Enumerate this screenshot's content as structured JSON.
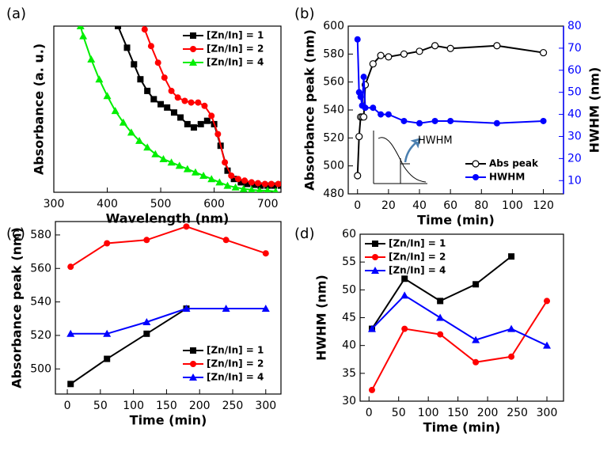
{
  "chart_data": [
    {
      "type": "line",
      "label": "(a)",
      "xlabel": "Wavelength (nm)",
      "ylabel": "Absorbance (a. u.)",
      "xlim": [
        300,
        725
      ],
      "xticks": [
        300,
        400,
        500,
        600,
        700
      ],
      "ylim": [
        0,
        1
      ],
      "legend": "top-right",
      "series": [
        {
          "name": "[Zn/In] = 1",
          "color": "#000000",
          "marker": "square",
          "x": [
            420,
            437,
            450,
            462,
            475,
            487,
            500,
            512,
            525,
            537,
            550,
            562,
            575,
            587,
            600,
            612,
            625,
            637,
            650,
            662,
            675,
            687,
            700,
            712,
            725
          ],
          "values": [
            1.0,
            0.87,
            0.77,
            0.68,
            0.61,
            0.56,
            0.53,
            0.51,
            0.48,
            0.45,
            0.41,
            0.39,
            0.41,
            0.43,
            0.41,
            0.28,
            0.13,
            0.08,
            0.06,
            0.05,
            0.045,
            0.04,
            0.04,
            0.04,
            0.04
          ]
        },
        {
          "name": "[Zn/In] = 2",
          "color": "#ff0000",
          "marker": "circle",
          "x": [
            465,
            470,
            482,
            495,
            507,
            520,
            532,
            545,
            557,
            570,
            582,
            595,
            607,
            620,
            632,
            645,
            657,
            670,
            682,
            695,
            707,
            720
          ],
          "values": [
            1.02,
            0.98,
            0.88,
            0.78,
            0.69,
            0.61,
            0.57,
            0.55,
            0.54,
            0.54,
            0.52,
            0.46,
            0.35,
            0.18,
            0.1,
            0.08,
            0.07,
            0.06,
            0.055,
            0.05,
            0.05,
            0.05
          ]
        },
        {
          "name": "[Zn/In] = 4",
          "color": "#00ee00",
          "marker": "triangle",
          "x": [
            350,
            355,
            370,
            385,
            400,
            415,
            430,
            445,
            460,
            475,
            490,
            505,
            520,
            535,
            550,
            565,
            580,
            595,
            610,
            625,
            640,
            655,
            670,
            685,
            700,
            715
          ],
          "values": [
            1.0,
            0.94,
            0.8,
            0.68,
            0.58,
            0.49,
            0.42,
            0.36,
            0.31,
            0.27,
            0.23,
            0.2,
            0.18,
            0.16,
            0.14,
            0.12,
            0.1,
            0.08,
            0.06,
            0.04,
            0.03,
            0.02,
            0.015,
            0.01,
            0.01,
            0.005
          ]
        }
      ]
    },
    {
      "type": "line",
      "label": "(b)",
      "xlabel": "Time (min)",
      "ylabel": "Absorbance peak (nm)",
      "y2label": "HWHM (nm)",
      "y2color": "#0000ff",
      "xlim": [
        -6,
        133
      ],
      "xticks": [
        0,
        20,
        40,
        60,
        80,
        100,
        120
      ],
      "ylim": [
        480,
        600
      ],
      "yticks": [
        480,
        500,
        520,
        540,
        560,
        580,
        600
      ],
      "y2lim": [
        4,
        80
      ],
      "y2ticks": [
        10,
        20,
        30,
        40,
        50,
        60,
        70,
        80
      ],
      "legend": "bottom-right",
      "annotation": "HWHM",
      "series": [
        {
          "name": "Abs peak",
          "color": "#000000",
          "marker": "open-circle",
          "x": [
            0,
            1,
            2,
            3,
            4,
            5,
            10,
            15,
            20,
            30,
            40,
            50,
            60,
            90,
            120
          ],
          "values": [
            493,
            521,
            535,
            535,
            535,
            558,
            573,
            579,
            578,
            580,
            582,
            586,
            584,
            586,
            581
          ]
        },
        {
          "name": "HWHM",
          "color": "#0000ff",
          "marker": "circle",
          "axis": "y2",
          "x": [
            0,
            1,
            2,
            3,
            4,
            5,
            10,
            15,
            20,
            30,
            40,
            50,
            60,
            90,
            120
          ],
          "values": [
            74,
            50,
            48,
            44,
            57,
            43,
            43,
            40,
            40,
            37,
            36,
            37,
            37,
            36,
            37
          ]
        }
      ]
    },
    {
      "type": "line",
      "label": "(c)",
      "xlabel": "Time (min)",
      "ylabel": "Absorbance peak (nm)",
      "xlim": [
        -18,
        323
      ],
      "xticks": [
        0,
        50,
        100,
        150,
        200,
        250,
        300
      ],
      "ylim": [
        485,
        588
      ],
      "yticks": [
        500,
        520,
        540,
        560,
        580
      ],
      "legend": "bottom-right",
      "series": [
        {
          "name": "[Zn/In] = 1",
          "color": "#000000",
          "marker": "square",
          "x": [
            5,
            60,
            120,
            180
          ],
          "values": [
            491,
            506,
            521,
            536
          ]
        },
        {
          "name": "[Zn/In] = 2",
          "color": "#ff0000",
          "marker": "circle",
          "x": [
            5,
            60,
            120,
            180,
            240,
            300
          ],
          "values": [
            561,
            575,
            577,
            585,
            577,
            569
          ]
        },
        {
          "name": "[Zn/In] = 4",
          "color": "#0000ff",
          "marker": "triangle",
          "x": [
            5,
            60,
            120,
            180,
            240,
            300
          ],
          "values": [
            521,
            521,
            528,
            536,
            536,
            536
          ]
        }
      ]
    },
    {
      "type": "line",
      "label": "(d)",
      "xlabel": "Time (min)",
      "ylabel": "HWHM (nm)",
      "xlim": [
        -15,
        328
      ],
      "xticks": [
        0,
        50,
        100,
        150,
        200,
        250,
        300
      ],
      "ylim": [
        30,
        60
      ],
      "yticks": [
        30,
        35,
        40,
        45,
        50,
        55,
        60
      ],
      "legend": "top-left",
      "series": [
        {
          "name": "[Zn/In] = 1",
          "color": "#000000",
          "marker": "square",
          "x": [
            5,
            60,
            120,
            180,
            240
          ],
          "values": [
            43,
            52,
            48,
            51,
            56
          ]
        },
        {
          "name": "[Zn/In] = 2",
          "color": "#ff0000",
          "marker": "circle",
          "x": [
            5,
            60,
            120,
            180,
            240,
            300
          ],
          "values": [
            32,
            43,
            42,
            37,
            38,
            48
          ]
        },
        {
          "name": "[Zn/In] = 4",
          "color": "#0000ff",
          "marker": "triangle",
          "x": [
            5,
            60,
            120,
            180,
            240,
            300
          ],
          "values": [
            43,
            49,
            45,
            41,
            43,
            40
          ]
        }
      ]
    }
  ]
}
